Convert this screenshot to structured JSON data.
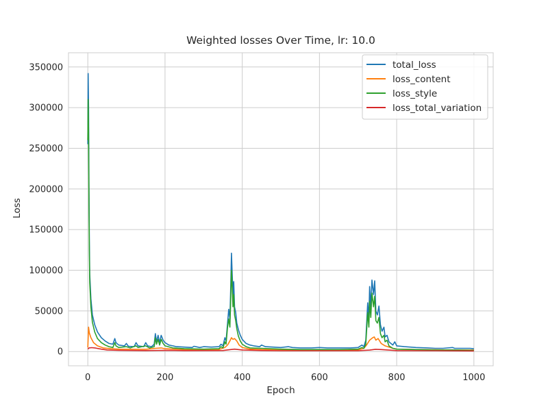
{
  "chart_data": {
    "type": "line",
    "title": "Weighted losses Over Time, lr: 10.0",
    "xlabel": "Epoch",
    "ylabel": "Loss",
    "xlim": [
      -50,
      1050
    ],
    "ylim": [
      -17500,
      367500
    ],
    "xticks": [
      0,
      200,
      400,
      600,
      800,
      1000
    ],
    "yticks": [
      0,
      50000,
      100000,
      150000,
      200000,
      250000,
      300000,
      350000
    ],
    "grid": true,
    "legend_position": "top-right",
    "series": [
      {
        "name": "total_loss",
        "color": "#1f77b4",
        "points": [
          [
            0,
            255000
          ],
          [
            1,
            342000
          ],
          [
            2,
            300000
          ],
          [
            3,
            200000
          ],
          [
            4,
            140000
          ],
          [
            5,
            95000
          ],
          [
            8,
            65000
          ],
          [
            12,
            45000
          ],
          [
            18,
            33000
          ],
          [
            25,
            24000
          ],
          [
            35,
            17000
          ],
          [
            45,
            13000
          ],
          [
            55,
            10000
          ],
          [
            65,
            9000
          ],
          [
            70,
            16000
          ],
          [
            73,
            11000
          ],
          [
            80,
            8000
          ],
          [
            95,
            7000
          ],
          [
            100,
            10000
          ],
          [
            105,
            6500
          ],
          [
            120,
            6000
          ],
          [
            125,
            11000
          ],
          [
            130,
            7000
          ],
          [
            145,
            6000
          ],
          [
            150,
            11000
          ],
          [
            155,
            7000
          ],
          [
            165,
            6000
          ],
          [
            172,
            9000
          ],
          [
            175,
            22000
          ],
          [
            178,
            12000
          ],
          [
            182,
            20000
          ],
          [
            186,
            11000
          ],
          [
            190,
            20000
          ],
          [
            195,
            14000
          ],
          [
            200,
            11000
          ],
          [
            210,
            8000
          ],
          [
            220,
            7000
          ],
          [
            230,
            6000
          ],
          [
            250,
            5500
          ],
          [
            270,
            5000
          ],
          [
            275,
            6500
          ],
          [
            290,
            5000
          ],
          [
            300,
            6000
          ],
          [
            320,
            5500
          ],
          [
            340,
            6000
          ],
          [
            345,
            9000
          ],
          [
            350,
            7000
          ],
          [
            355,
            17000
          ],
          [
            358,
            13000
          ],
          [
            362,
            35000
          ],
          [
            365,
            52000
          ],
          [
            368,
            40000
          ],
          [
            370,
            75000
          ],
          [
            372,
            121000
          ],
          [
            374,
            95000
          ],
          [
            376,
            70000
          ],
          [
            378,
            86000
          ],
          [
            380,
            55000
          ],
          [
            383,
            48000
          ],
          [
            386,
            35000
          ],
          [
            390,
            27000
          ],
          [
            395,
            20000
          ],
          [
            400,
            15000
          ],
          [
            410,
            10000
          ],
          [
            420,
            8000
          ],
          [
            430,
            7000
          ],
          [
            445,
            6000
          ],
          [
            450,
            8000
          ],
          [
            460,
            6000
          ],
          [
            480,
            5500
          ],
          [
            500,
            5000
          ],
          [
            520,
            6000
          ],
          [
            530,
            5000
          ],
          [
            550,
            4500
          ],
          [
            580,
            4500
          ],
          [
            600,
            5000
          ],
          [
            620,
            4500
          ],
          [
            650,
            4500
          ],
          [
            680,
            4500
          ],
          [
            700,
            5000
          ],
          [
            710,
            8000
          ],
          [
            715,
            6000
          ],
          [
            720,
            14000
          ],
          [
            725,
            60000
          ],
          [
            728,
            40000
          ],
          [
            730,
            80000
          ],
          [
            733,
            55000
          ],
          [
            736,
            88000
          ],
          [
            740,
            70000
          ],
          [
            743,
            87000
          ],
          [
            746,
            50000
          ],
          [
            750,
            45000
          ],
          [
            754,
            56000
          ],
          [
            758,
            33000
          ],
          [
            762,
            25000
          ],
          [
            767,
            30000
          ],
          [
            770,
            18000
          ],
          [
            775,
            20000
          ],
          [
            780,
            12000
          ],
          [
            790,
            8000
          ],
          [
            795,
            12000
          ],
          [
            800,
            7000
          ],
          [
            820,
            6000
          ],
          [
            850,
            5000
          ],
          [
            880,
            4500
          ],
          [
            900,
            4000
          ],
          [
            920,
            4000
          ],
          [
            945,
            5000
          ],
          [
            950,
            4000
          ],
          [
            970,
            4000
          ],
          [
            990,
            4000
          ],
          [
            1000,
            3500
          ]
        ]
      },
      {
        "name": "loss_content",
        "color": "#ff7f0e",
        "points": [
          [
            0,
            5000
          ],
          [
            2,
            30000
          ],
          [
            4,
            23000
          ],
          [
            8,
            17000
          ],
          [
            15,
            11000
          ],
          [
            25,
            7000
          ],
          [
            40,
            4500
          ],
          [
            60,
            3500
          ],
          [
            80,
            3000
          ],
          [
            120,
            2800
          ],
          [
            150,
            2800
          ],
          [
            175,
            4000
          ],
          [
            190,
            4500
          ],
          [
            200,
            3500
          ],
          [
            250,
            2500
          ],
          [
            300,
            2200
          ],
          [
            340,
            2500
          ],
          [
            355,
            5000
          ],
          [
            362,
            8000
          ],
          [
            368,
            13000
          ],
          [
            372,
            17000
          ],
          [
            376,
            15000
          ],
          [
            380,
            16000
          ],
          [
            386,
            13000
          ],
          [
            392,
            8000
          ],
          [
            400,
            5000
          ],
          [
            420,
            3000
          ],
          [
            450,
            2500
          ],
          [
            500,
            2200
          ],
          [
            600,
            2000
          ],
          [
            700,
            2000
          ],
          [
            715,
            4000
          ],
          [
            722,
            8000
          ],
          [
            730,
            14000
          ],
          [
            738,
            17000
          ],
          [
            742,
            18000
          ],
          [
            746,
            14000
          ],
          [
            752,
            16000
          ],
          [
            760,
            10000
          ],
          [
            770,
            7000
          ],
          [
            790,
            4000
          ],
          [
            800,
            3000
          ],
          [
            850,
            2500
          ],
          [
            900,
            2200
          ],
          [
            950,
            2000
          ],
          [
            1000,
            2000
          ]
        ]
      },
      {
        "name": "loss_style",
        "color": "#2ca02c",
        "points": [
          [
            0,
            260000
          ],
          [
            1,
            310000
          ],
          [
            2,
            270000
          ],
          [
            3,
            180000
          ],
          [
            4,
            125000
          ],
          [
            5,
            85000
          ],
          [
            8,
            55000
          ],
          [
            12,
            36000
          ],
          [
            18,
            24000
          ],
          [
            25,
            16000
          ],
          [
            35,
            11000
          ],
          [
            45,
            8000
          ],
          [
            55,
            6000
          ],
          [
            65,
            5000
          ],
          [
            70,
            11000
          ],
          [
            73,
            7000
          ],
          [
            80,
            5000
          ],
          [
            100,
            6000
          ],
          [
            110,
            4500
          ],
          [
            125,
            7000
          ],
          [
            130,
            5000
          ],
          [
            150,
            7000
          ],
          [
            160,
            4500
          ],
          [
            172,
            6000
          ],
          [
            175,
            17000
          ],
          [
            178,
            9000
          ],
          [
            182,
            15000
          ],
          [
            186,
            8000
          ],
          [
            190,
            15000
          ],
          [
            195,
            10000
          ],
          [
            200,
            7000
          ],
          [
            220,
            4500
          ],
          [
            250,
            3500
          ],
          [
            300,
            3000
          ],
          [
            340,
            3500
          ],
          [
            345,
            6000
          ],
          [
            350,
            4500
          ],
          [
            355,
            12000
          ],
          [
            358,
            9000
          ],
          [
            362,
            30000
          ],
          [
            365,
            40000
          ],
          [
            368,
            30000
          ],
          [
            370,
            60000
          ],
          [
            372,
            100000
          ],
          [
            374,
            80000
          ],
          [
            376,
            55000
          ],
          [
            378,
            70000
          ],
          [
            380,
            45000
          ],
          [
            383,
            38000
          ],
          [
            386,
            28000
          ],
          [
            390,
            19000
          ],
          [
            395,
            13000
          ],
          [
            400,
            9000
          ],
          [
            410,
            6000
          ],
          [
            420,
            4500
          ],
          [
            450,
            4000
          ],
          [
            500,
            3000
          ],
          [
            550,
            2500
          ],
          [
            600,
            2500
          ],
          [
            650,
            2500
          ],
          [
            700,
            3000
          ],
          [
            710,
            5000
          ],
          [
            715,
            4000
          ],
          [
            720,
            9000
          ],
          [
            725,
            48000
          ],
          [
            728,
            30000
          ],
          [
            730,
            62000
          ],
          [
            733,
            42000
          ],
          [
            736,
            72000
          ],
          [
            740,
            55000
          ],
          [
            743,
            68000
          ],
          [
            746,
            38000
          ],
          [
            750,
            35000
          ],
          [
            754,
            42000
          ],
          [
            758,
            22000
          ],
          [
            762,
            17000
          ],
          [
            767,
            20000
          ],
          [
            770,
            12000
          ],
          [
            775,
            14000
          ],
          [
            780,
            7000
          ],
          [
            790,
            4000
          ],
          [
            800,
            3000
          ],
          [
            850,
            2500
          ],
          [
            900,
            2000
          ],
          [
            950,
            2000
          ],
          [
            1000,
            1500
          ]
        ]
      },
      {
        "name": "loss_total_variation",
        "color": "#d62728",
        "points": [
          [
            0,
            3000
          ],
          [
            3,
            4500
          ],
          [
            10,
            4800
          ],
          [
            20,
            4300
          ],
          [
            35,
            3000
          ],
          [
            50,
            2000
          ],
          [
            80,
            1500
          ],
          [
            150,
            1200
          ],
          [
            200,
            1500
          ],
          [
            250,
            1200
          ],
          [
            350,
            1300
          ],
          [
            370,
            2500
          ],
          [
            380,
            3000
          ],
          [
            400,
            2000
          ],
          [
            450,
            1300
          ],
          [
            500,
            1000
          ],
          [
            600,
            1000
          ],
          [
            700,
            1000
          ],
          [
            730,
            1800
          ],
          [
            745,
            2800
          ],
          [
            760,
            2500
          ],
          [
            780,
            1800
          ],
          [
            800,
            1200
          ],
          [
            900,
            1000
          ],
          [
            1000,
            800
          ]
        ]
      }
    ]
  }
}
